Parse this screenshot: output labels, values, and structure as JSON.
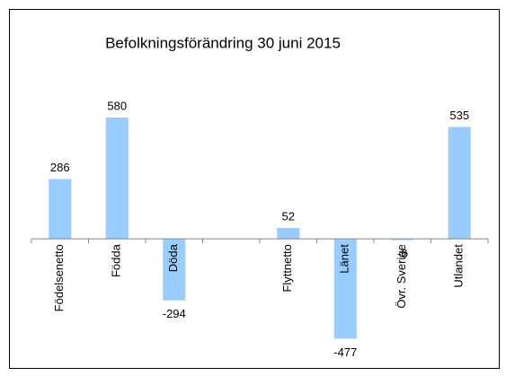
{
  "chart_data": {
    "type": "bar",
    "title": "Befolkningsförändring 30 juni 2015",
    "categories": [
      "Födelsenetto",
      "Födda",
      "Döda",
      null,
      "Flyttnetto",
      "Länet",
      "Övr. Sverige",
      "Utlandet"
    ],
    "values": [
      286,
      580,
      -294,
      null,
      52,
      -477,
      -6,
      535
    ],
    "color": "#99ccff",
    "ylim": [
      -600,
      700
    ]
  }
}
